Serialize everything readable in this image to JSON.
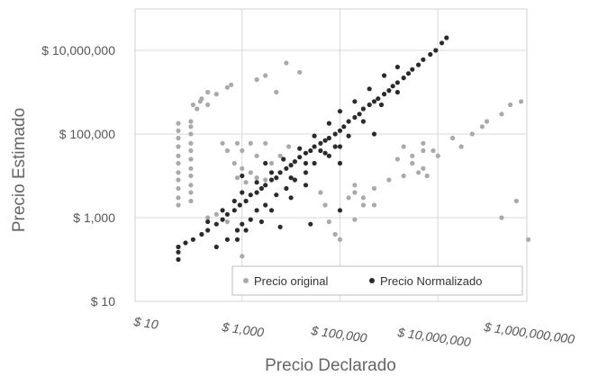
{
  "chart_data": {
    "type": "scatter",
    "title": "",
    "xlabel": "Precio Declarado",
    "ylabel": "Precio Estimado",
    "x_scale": "log10",
    "y_scale": "log10",
    "xlim": [
      10,
      1000000000
    ],
    "ylim": [
      10,
      20000000
    ],
    "x_ticks": [
      10,
      1000,
      100000,
      10000000,
      1000000000
    ],
    "x_tick_labels": [
      "$ 10",
      "$ 1,000",
      "$ 100,000",
      "$ 10,000,000",
      "$ 1,000,000,000"
    ],
    "y_ticks": [
      10,
      1000,
      100000,
      10000000
    ],
    "y_tick_labels": [
      "$ 10",
      "$ 1,000",
      "$ 100,000",
      "$ 10,000,000"
    ],
    "grid": true,
    "legend_position": "bottom-right",
    "series": [
      {
        "name": "Precio original",
        "color": "#a9a9a9",
        "points": [
          [
            50,
            180000
          ],
          [
            50,
            120000
          ],
          [
            50,
            80000
          ],
          [
            50,
            50000
          ],
          [
            50,
            30000
          ],
          [
            50,
            20000
          ],
          [
            50,
            12000
          ],
          [
            50,
            8000
          ],
          [
            50,
            5000
          ],
          [
            50,
            3000
          ],
          [
            50,
            2000
          ],
          [
            90,
            200000
          ],
          [
            90,
            150000
          ],
          [
            90,
            100000
          ],
          [
            90,
            60000
          ],
          [
            90,
            40000
          ],
          [
            90,
            25000
          ],
          [
            90,
            15000
          ],
          [
            90,
            10000
          ],
          [
            90,
            6000
          ],
          [
            90,
            4000
          ],
          [
            90,
            2500
          ],
          [
            100,
            500000
          ],
          [
            120,
            400000
          ],
          [
            140,
            600000
          ],
          [
            150,
            700000
          ],
          [
            200,
            1000000
          ],
          [
            200,
            500000
          ],
          [
            300,
            900000
          ],
          [
            500,
            1300000
          ],
          [
            600,
            1500000
          ],
          [
            400,
            60000
          ],
          [
            800,
            60000
          ],
          [
            1500,
            60000
          ],
          [
            3000,
            60000
          ],
          [
            500,
            40000
          ],
          [
            1000,
            40000
          ],
          [
            2000,
            30000
          ],
          [
            700,
            20000
          ],
          [
            1000,
            15000
          ],
          [
            1500,
            12000
          ],
          [
            2000,
            9000
          ],
          [
            800,
            9000
          ],
          [
            1200,
            7000
          ],
          [
            3000,
            8000
          ],
          [
            4000,
            20000
          ],
          [
            6000,
            30000
          ],
          [
            9000,
            50000
          ],
          [
            2000,
            2000000
          ],
          [
            3000,
            2500000
          ],
          [
            5000,
            1000000
          ],
          [
            8000,
            5000000
          ],
          [
            15000,
            3000000
          ],
          [
            200,
            1000
          ],
          [
            300,
            1200
          ],
          [
            500,
            800
          ],
          [
            800,
            500
          ],
          [
            1000,
            120
          ],
          [
            20000,
            12000
          ],
          [
            40000,
            4000
          ],
          [
            50000,
            2000
          ],
          [
            60000,
            800
          ],
          [
            80000,
            400
          ],
          [
            100000,
            300
          ],
          [
            150000,
            3000
          ],
          [
            300000,
            2000
          ],
          [
            200000,
            900
          ],
          [
            500000,
            2000
          ],
          [
            200000,
            6000
          ],
          [
            200000,
            4000
          ],
          [
            300000,
            3000
          ],
          [
            500000,
            5000
          ],
          [
            1000000,
            8000
          ],
          [
            2000000,
            10000
          ],
          [
            3000000,
            20000
          ],
          [
            4000000,
            12000
          ],
          [
            5000000,
            15000
          ],
          [
            6000000,
            10000
          ],
          [
            5000000,
            40000
          ],
          [
            10000000,
            30000
          ],
          [
            20000000,
            80000
          ],
          [
            30000000,
            50000
          ],
          [
            50000000,
            100000
          ],
          [
            80000000,
            150000
          ],
          [
            100000000,
            200000
          ],
          [
            200000000,
            300000
          ],
          [
            300000000,
            500000
          ],
          [
            500000000,
            600000
          ],
          [
            200000000,
            1000
          ],
          [
            400000000,
            2500
          ],
          [
            700000000,
            300
          ],
          [
            2000000,
            50000
          ],
          [
            3000000,
            30000
          ],
          [
            1500000,
            25000
          ],
          [
            5000000,
            60000
          ],
          [
            8000000,
            40000
          ]
        ]
      },
      {
        "name": "Precio Normalizado",
        "color": "#2b2b2b",
        "points": [
          [
            50,
            200
          ],
          [
            50,
            150
          ],
          [
            50,
            100
          ],
          [
            70,
            250
          ],
          [
            100,
            300
          ],
          [
            150,
            400
          ],
          [
            200,
            500
          ],
          [
            300,
            700
          ],
          [
            400,
            900
          ],
          [
            500,
            1200
          ],
          [
            700,
            1500
          ],
          [
            900,
            2000
          ],
          [
            1200,
            2500
          ],
          [
            1500,
            3500
          ],
          [
            2000,
            4000
          ],
          [
            2500,
            5000
          ],
          [
            3000,
            6000
          ],
          [
            4000,
            8000
          ],
          [
            5000,
            9000
          ],
          [
            6000,
            12000
          ],
          [
            8000,
            15000
          ],
          [
            10000,
            18000
          ],
          [
            12000,
            22000
          ],
          [
            15000,
            28000
          ],
          [
            20000,
            35000
          ],
          [
            25000,
            40000
          ],
          [
            30000,
            50000
          ],
          [
            40000,
            60000
          ],
          [
            50000,
            70000
          ],
          [
            60000,
            80000
          ],
          [
            80000,
            100000
          ],
          [
            100000,
            120000
          ],
          [
            120000,
            150000
          ],
          [
            150000,
            200000
          ],
          [
            200000,
            250000
          ],
          [
            250000,
            300000
          ],
          [
            300000,
            400000
          ],
          [
            400000,
            500000
          ],
          [
            500000,
            600000
          ],
          [
            600000,
            700000
          ],
          [
            800000,
            900000
          ],
          [
            1000000,
            1100000
          ],
          [
            1200000,
            1400000
          ],
          [
            1500000,
            1700000
          ],
          [
            2000000,
            2200000
          ],
          [
            2500000,
            2800000
          ],
          [
            3000000,
            3500000
          ],
          [
            4000000,
            4500000
          ],
          [
            5000000,
            6000000
          ],
          [
            7000000,
            8000000
          ],
          [
            9000000,
            10000000
          ],
          [
            12000000,
            15000000
          ],
          [
            15000000,
            20000000
          ],
          [
            300,
            200
          ],
          [
            500,
            300
          ],
          [
            800,
            500
          ],
          [
            1000,
            700
          ],
          [
            1500,
            900
          ],
          [
            2000,
            1500
          ],
          [
            3000,
            2000
          ],
          [
            5000,
            3500
          ],
          [
            8000,
            5000
          ],
          [
            12000,
            8000
          ],
          [
            20000,
            12000
          ],
          [
            30000,
            20000
          ],
          [
            50000,
            35000
          ],
          [
            80000,
            50000
          ],
          [
            150000,
            90000
          ],
          [
            300000,
            200000
          ],
          [
            700000,
            500000
          ],
          [
            1500000,
            1000000
          ],
          [
            200,
            800
          ],
          [
            400,
            1500
          ],
          [
            700,
            2500
          ],
          [
            1000,
            4000
          ],
          [
            2000,
            7000
          ],
          [
            4000,
            12000
          ],
          [
            7000,
            25000
          ],
          [
            15000,
            45000
          ],
          [
            30000,
            90000
          ],
          [
            60000,
            180000
          ],
          [
            100000,
            350000
          ],
          [
            200000,
            600000
          ],
          [
            400000,
            1200000
          ],
          [
            800000,
            2500000
          ],
          [
            1500000,
            4000000
          ],
          [
            800,
            300
          ],
          [
            1200,
            500
          ],
          [
            2500,
            800
          ],
          [
            4000,
            1500
          ],
          [
            10000,
            3000
          ],
          [
            20000,
            6000
          ],
          [
            100000,
            20000
          ],
          [
            500000,
            100000
          ],
          [
            25000,
            700
          ],
          [
            6000,
            600
          ],
          [
            100000,
            1500
          ],
          [
            20000,
            20000
          ],
          [
            40000,
            40000
          ],
          [
            60000,
            30000
          ],
          [
            1000,
            10000
          ],
          [
            3000,
            20000
          ],
          [
            10000,
            9000
          ],
          [
            100000,
            50000
          ]
        ]
      }
    ]
  }
}
